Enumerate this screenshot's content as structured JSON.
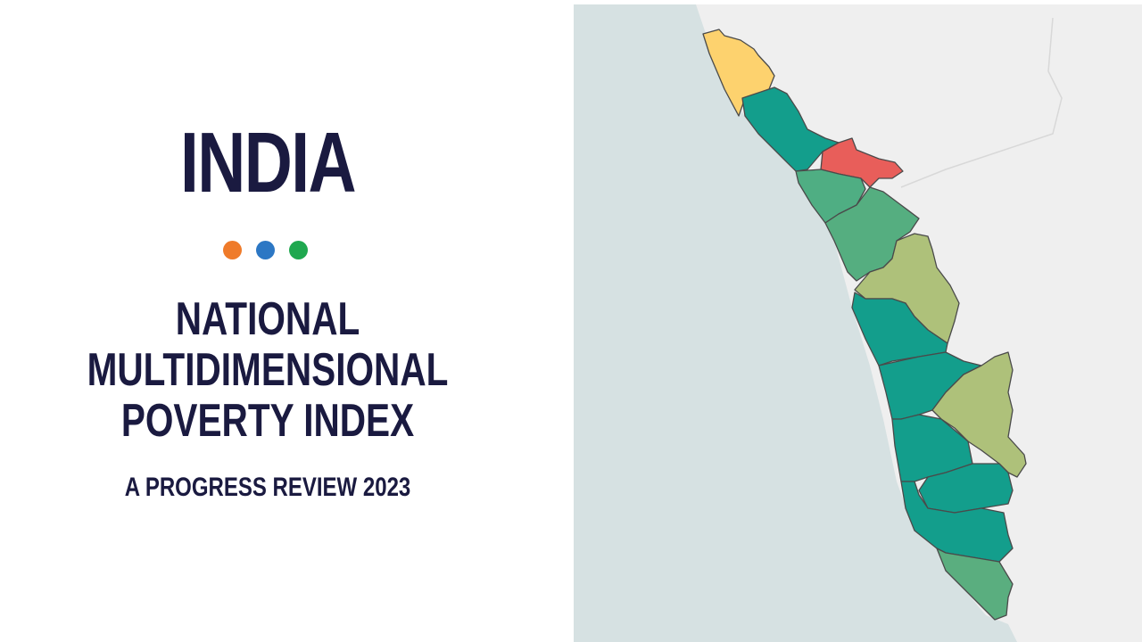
{
  "cover": {
    "country": "INDIA",
    "title_lines": [
      "NATIONAL",
      "MULTIDIMENSIONAL",
      "POVERTY INDEX"
    ],
    "subtitle": "A PROGRESS REVIEW 2023",
    "text_color": "#1a1a40",
    "dots": [
      {
        "color": "#ef7b2a"
      },
      {
        "color": "#2c77c4"
      },
      {
        "color": "#1fa84f"
      }
    ]
  },
  "map": {
    "ocean_color": "#d6e1e2",
    "land_color": "#efefef",
    "border_color": "#4a4a4a",
    "district_colors": [
      "#fdd26e",
      "#139e8c",
      "#e85e5a",
      "#4fae83",
      "#55ae80",
      "#aec17a",
      "#139e8c",
      "#139e8c",
      "#aec17a",
      "#139e8c",
      "#139e8c",
      "#139e8c",
      "#5aae7f"
    ]
  }
}
